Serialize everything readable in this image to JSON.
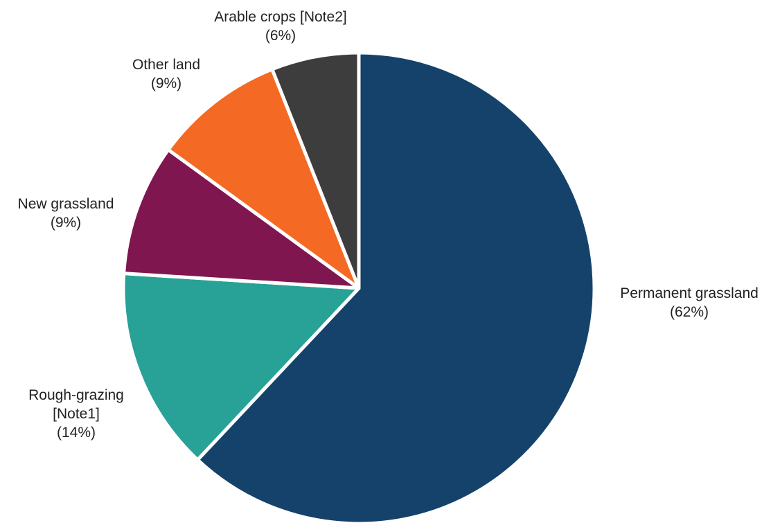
{
  "chart_data": {
    "type": "pie",
    "slices": [
      {
        "label_lines": [
          "Permanent grassland"
        ],
        "percent_text": "(62%)",
        "value": 62,
        "color": "#14426b"
      },
      {
        "label_lines": [
          "Rough-grazing",
          "[Note1]"
        ],
        "percent_text": "(14%)",
        "value": 14,
        "color": "#28a197"
      },
      {
        "label_lines": [
          "New grassland"
        ],
        "percent_text": "(9%)",
        "value": 9,
        "color": "#801650"
      },
      {
        "label_lines": [
          "Other land"
        ],
        "percent_text": "(9%)",
        "value": 9,
        "color": "#f46a25"
      },
      {
        "label_lines": [
          "Arable crops [Note2]"
        ],
        "percent_text": "(6%)",
        "value": 6,
        "color": "#3d3d3d"
      }
    ],
    "start_angle": "12 o'clock",
    "direction": "clockwise",
    "legend": "none"
  }
}
